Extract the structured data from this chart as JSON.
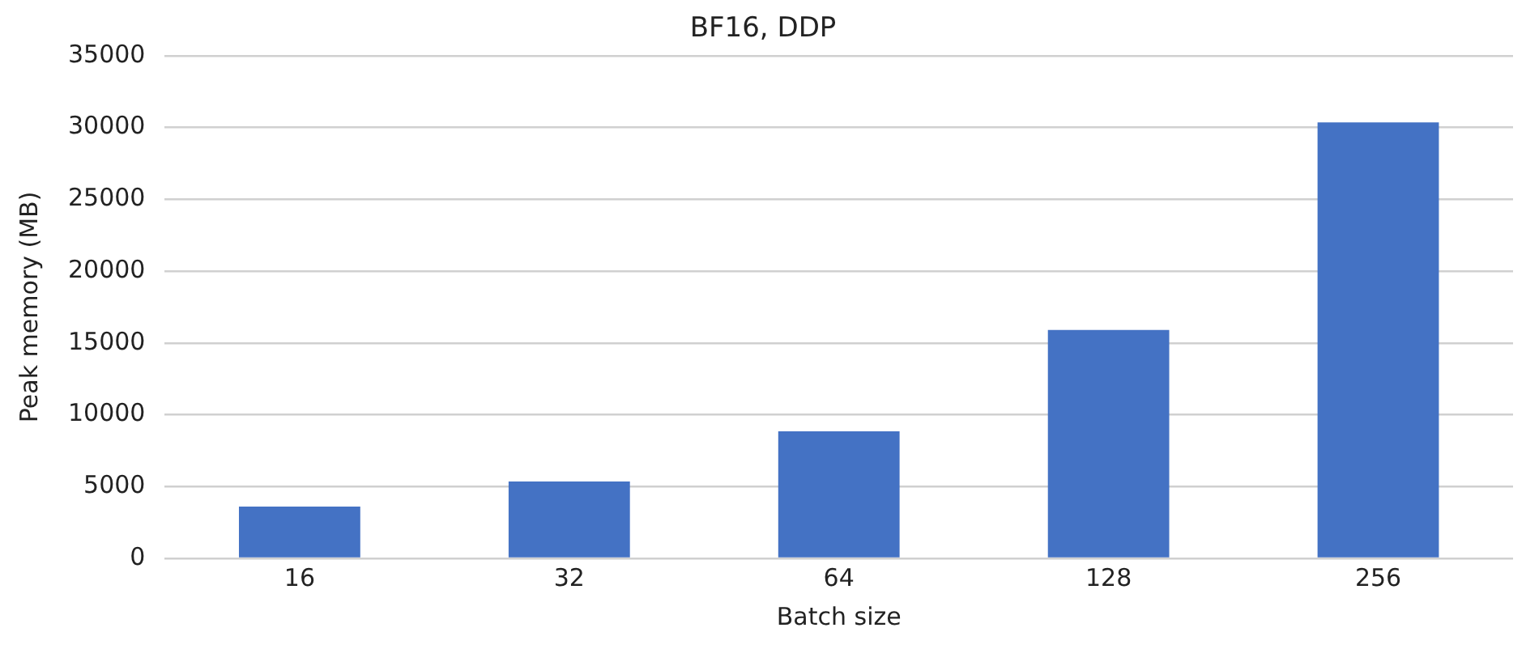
{
  "chart_data": {
    "type": "bar",
    "title": "BF16, DDP",
    "xlabel": "Batch size",
    "ylabel": "Peak memory (MB)",
    "categories": [
      "16",
      "32",
      "64",
      "128",
      "256"
    ],
    "values": [
      3600,
      5350,
      8850,
      15900,
      30350
    ],
    "color": "#4472c4",
    "ylim": [
      0,
      35000
    ],
    "yticks": [
      0,
      5000,
      10000,
      15000,
      20000,
      25000,
      30000,
      35000
    ],
    "grid": "y",
    "legend": false
  }
}
